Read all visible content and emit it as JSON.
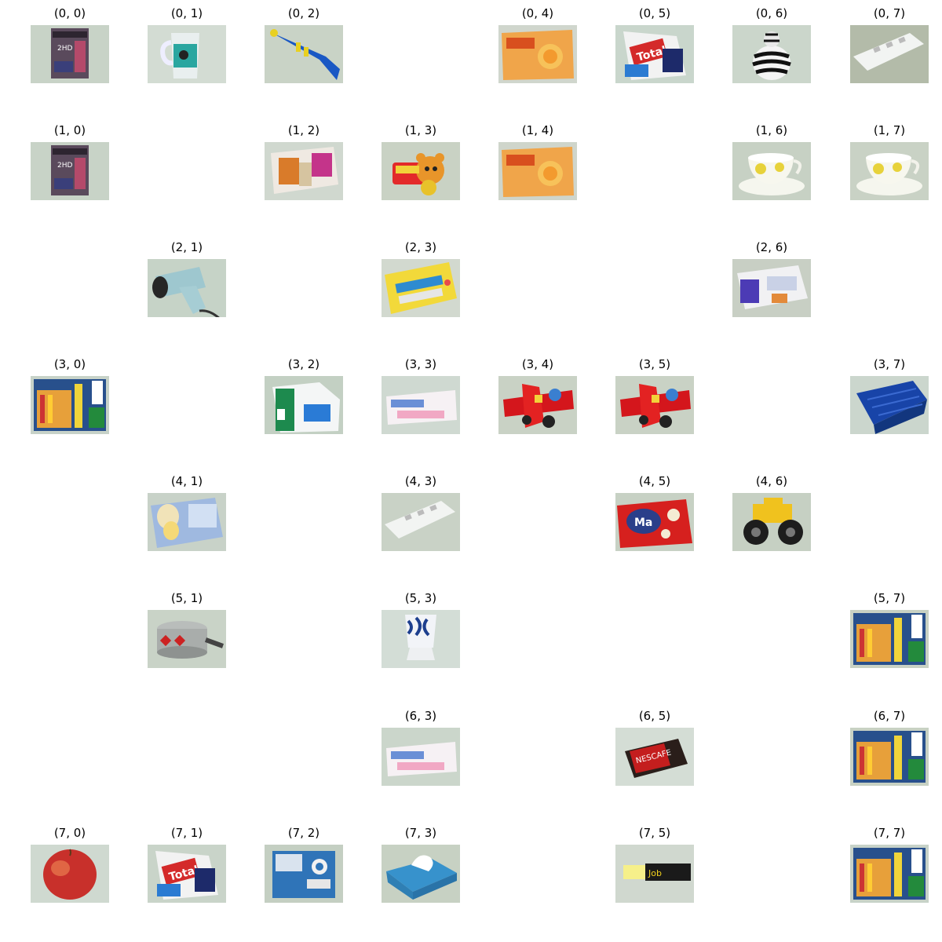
{
  "figure": {
    "cells": [
      {
        "label": "(0, 0)",
        "object": "floppy-disk-box-icon",
        "bg": "#c8d3c7"
      },
      {
        "label": "(0, 1)",
        "object": "mug-icon",
        "bg": "#d3dcd3"
      },
      {
        "label": "(0, 2)",
        "object": "toy-trumpet-icon",
        "bg": "#c9d3c6"
      },
      {
        "label": "(0, 4)",
        "object": "juice-carton-icon",
        "bg": "#d0d6cd"
      },
      {
        "label": "(0, 5)",
        "object": "detergent-bag-icon",
        "bg": "#c9d6cc"
      },
      {
        "label": "(0, 6)",
        "object": "zebra-figurine-icon",
        "bg": "#cbd6cb"
      },
      {
        "label": "(0, 7)",
        "object": "power-strip-icon",
        "bg": "#b3bba9"
      },
      {
        "label": "(1, 0)",
        "object": "floppy-disk-box-icon",
        "bg": "#c8d3c7"
      },
      {
        "label": "(1, 2)",
        "object": "snack-bag-icon",
        "bg": "#d0d8cf"
      },
      {
        "label": "(1, 3)",
        "object": "toy-bear-icon",
        "bg": "#c9d2c4"
      },
      {
        "label": "(1, 4)",
        "object": "juice-carton-icon",
        "bg": "#cfd5cb"
      },
      {
        "label": "(1, 6)",
        "object": "teacup-icon",
        "bg": "#c7d1c4"
      },
      {
        "label": "(1, 7)",
        "object": "teacup-icon",
        "bg": "#c9d2c5"
      },
      {
        "label": "(2, 1)",
        "object": "hair-dryer-icon",
        "bg": "#c6d3c7"
      },
      {
        "label": "(2, 3)",
        "object": "toy-keyboard-icon",
        "bg": "#d2d9cf"
      },
      {
        "label": "(2, 6)",
        "object": "electronics-box-icon",
        "bg": "#c8cfc4"
      },
      {
        "label": "(3, 0)",
        "object": "book-icon",
        "bg": "#c7d2c8"
      },
      {
        "label": "(3, 2)",
        "object": "milk-carton-icon",
        "bg": "#c3d0c3"
      },
      {
        "label": "(3, 3)",
        "object": "medicine-box-icon",
        "bg": "#cfd9d1"
      },
      {
        "label": "(3, 4)",
        "object": "toy-airplane-icon",
        "bg": "#c9d2c5"
      },
      {
        "label": "(3, 5)",
        "object": "toy-airplane-icon",
        "bg": "#c9d2c5"
      },
      {
        "label": "(3, 7)",
        "object": "plastic-basket-icon",
        "bg": "#cbd6cd"
      },
      {
        "label": "(4, 1)",
        "object": "tea-box-icon",
        "bg": "#c8d2c8"
      },
      {
        "label": "(4, 3)",
        "object": "power-strip-icon",
        "bg": "#c9d2c6"
      },
      {
        "label": "(4, 5)",
        "object": "chips-bag-icon",
        "bg": "#c7d1c4"
      },
      {
        "label": "(4, 6)",
        "object": "toy-truck-icon",
        "bg": "#c6d0c3"
      },
      {
        "label": "(5, 1)",
        "object": "saucepan-icon",
        "bg": "#c9d3c7"
      },
      {
        "label": "(5, 3)",
        "object": "egg-cup-icon",
        "bg": "#d3ddd6"
      },
      {
        "label": "(5, 7)",
        "object": "book-icon",
        "bg": "#c8d1c3"
      },
      {
        "label": "(6, 3)",
        "object": "medicine-box-icon",
        "bg": "#cbd6cb"
      },
      {
        "label": "(6, 5)",
        "object": "coffee-jar-icon",
        "bg": "#d4ddd5"
      },
      {
        "label": "(6, 7)",
        "object": "book-icon",
        "bg": "#c8d1c3"
      },
      {
        "label": "(7, 0)",
        "object": "apple-icon",
        "bg": "#cfd9d0"
      },
      {
        "label": "(7, 1)",
        "object": "detergent-bag-icon",
        "bg": "#c9d4c9"
      },
      {
        "label": "(7, 2)",
        "object": "electronic-device-box-icon",
        "bg": "#c4cfc2"
      },
      {
        "label": "(7, 3)",
        "object": "tissue-box-icon",
        "bg": "#c7d1c3"
      },
      {
        "label": "(7, 5)",
        "object": "highlighter-pen-icon",
        "bg": "#d0d8cf"
      },
      {
        "label": "(7, 7)",
        "object": "book-icon",
        "bg": "#c7d2c8"
      }
    ]
  }
}
